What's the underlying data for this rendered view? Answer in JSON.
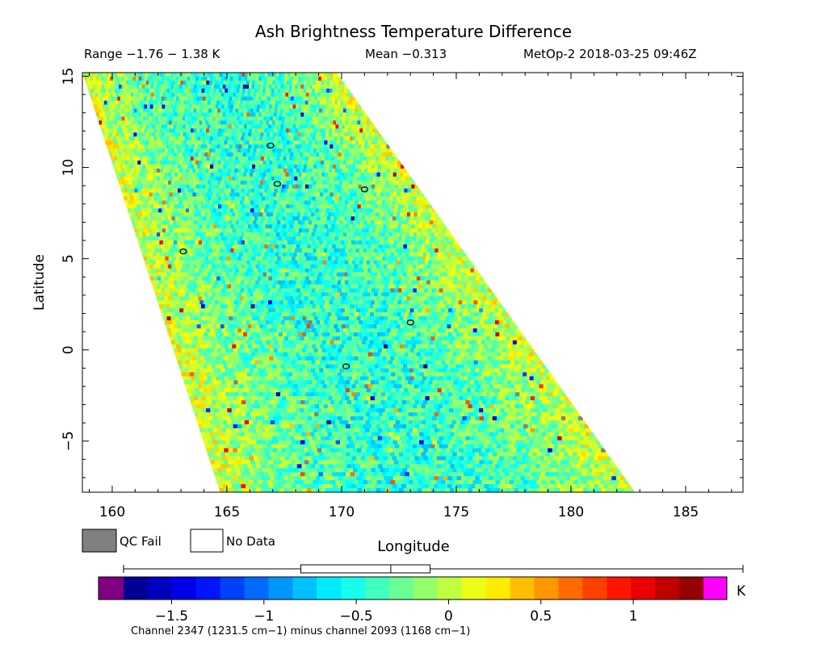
{
  "header": {
    "title": "Ash Brightness Temperature Difference",
    "range_text": "Range −1.76 − 1.38 K",
    "mean_text": "Mean −0.313",
    "satellite_text": "MetOp-2 2018-03-25 09:46Z"
  },
  "legend": {
    "qc_fail_label": "QC Fail",
    "no_data_label": "No Data",
    "qc_fail_color": "#808080",
    "no_data_color": "#ffffff"
  },
  "colorbar": {
    "unit": "K",
    "caption": "Channel 2347 (1231.5 cm−1) minus channel 2093 (1168 cm−1)",
    "min": -1.76,
    "max": 1.38,
    "ticks": [
      -1.5,
      -1,
      -0.5,
      0,
      0.5,
      1
    ],
    "tick_labels": [
      "−1.5",
      "−1",
      "−0.5",
      "0",
      "0.5",
      "1"
    ],
    "under_color": "#800080",
    "over_color": "#ff00ff",
    "histogram_box": [
      -0.8,
      -0.313,
      -0.1
    ]
  },
  "chart_data": {
    "type": "heatmap",
    "title": "Ash Brightness Temperature Difference",
    "xlabel": "Longitude",
    "ylabel": "Latitude",
    "xlim": [
      158.7,
      187.5
    ],
    "ylim": [
      -7.8,
      15.2
    ],
    "x_ticks": [
      160,
      165,
      170,
      175,
      180,
      185
    ],
    "x_tick_labels": [
      "160",
      "165",
      "170",
      "175",
      "180",
      "185"
    ],
    "y_ticks": [
      -5,
      0,
      5,
      10,
      15
    ],
    "y_tick_labels": [
      "−5",
      "0",
      "5",
      "10",
      "15"
    ],
    "swath": {
      "top_left": [
        158.7,
        15.2
      ],
      "top_right": [
        169.8,
        15.2
      ],
      "bottom_left": [
        164.7,
        -7.8
      ],
      "bottom_right": [
        182.8,
        -7.8
      ]
    },
    "value_range": [
      -1.76,
      1.38
    ],
    "mean": -0.313,
    "colormap": "jet",
    "grid": false,
    "contours": [
      {
        "lon": 166.9,
        "lat": 11.2
      },
      {
        "lon": 167.2,
        "lat": 9.1
      },
      {
        "lon": 171.0,
        "lat": 8.8
      },
      {
        "lon": 173.0,
        "lat": 1.5
      },
      {
        "lon": 170.2,
        "lat": -0.9
      },
      {
        "lon": 163.1,
        "lat": 5.4
      }
    ]
  }
}
